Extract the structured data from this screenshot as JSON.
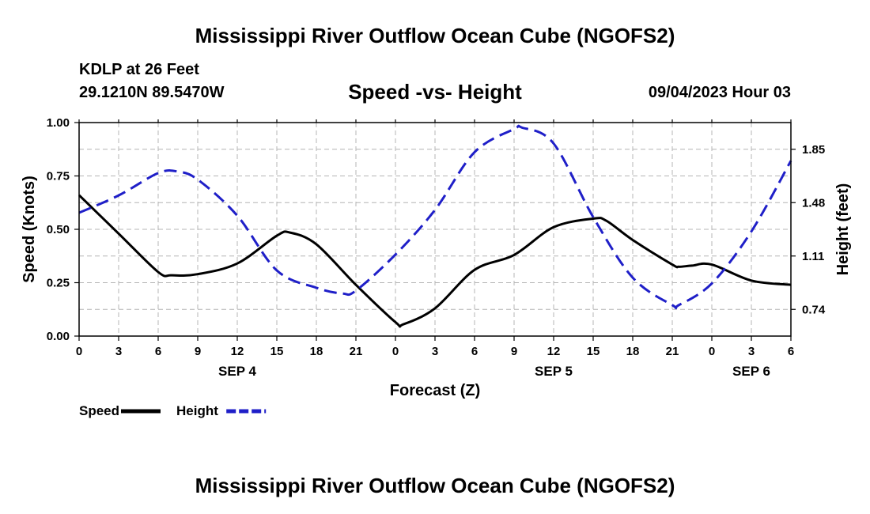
{
  "header": {
    "title": "Mississippi River Outflow Ocean Cube (NGOFS2)",
    "station": "KDLP at 26 Feet",
    "coords": "29.1210N  89.5470W",
    "subtitle": "Speed -vs- Height",
    "datetime": "09/04/2023 Hour 03",
    "footer_title": "Mississippi River Outflow Ocean Cube (NGOFS2)"
  },
  "colors": {
    "speed": "#000000",
    "height": "#1f1fc8",
    "grid": "#b4b4b4"
  },
  "chart_data": {
    "type": "line",
    "title": "Speed -vs- Height",
    "xlabel": "Forecast (Z)",
    "ylabel": "Speed (Knots)",
    "y2label": "Height (feet)",
    "xlim": [
      0,
      54
    ],
    "ylim": [
      0,
      1.0
    ],
    "y2lim": [
      0.555,
      2.035
    ],
    "x_tick_values": [
      0,
      3,
      6,
      9,
      12,
      15,
      18,
      21,
      24,
      27,
      30,
      33,
      36,
      39,
      42,
      45,
      48,
      51,
      54
    ],
    "x_tick_labels": [
      "0",
      "3",
      "6",
      "9",
      "12",
      "15",
      "18",
      "21",
      "0",
      "3",
      "6",
      "9",
      "12",
      "15",
      "18",
      "21",
      "0",
      "3",
      "6"
    ],
    "date_labels": [
      {
        "x": 12,
        "label": "SEP 4"
      },
      {
        "x": 36,
        "label": "SEP 5"
      },
      {
        "x": 51,
        "label": "SEP 6"
      }
    ],
    "y_ticks": [
      {
        "v": 0.0,
        "label": "0.00"
      },
      {
        "v": 0.25,
        "label": "0.25"
      },
      {
        "v": 0.5,
        "label": "0.50"
      },
      {
        "v": 0.75,
        "label": "0.75"
      },
      {
        "v": 1.0,
        "label": "1.00"
      }
    ],
    "y2_ticks": [
      {
        "v": 0.74,
        "label": "0.74"
      },
      {
        "v": 1.11,
        "label": "1.11"
      },
      {
        "v": 1.48,
        "label": "1.48"
      },
      {
        "v": 1.85,
        "label": "1.85"
      }
    ],
    "grid": true,
    "series": [
      {
        "name": "Speed",
        "axis": "left",
        "style": "solid",
        "x": [
          0,
          3,
          6,
          7,
          9,
          12,
          15,
          16,
          18,
          21,
          24,
          24.6,
          27,
          30,
          33,
          36,
          39,
          40,
          42,
          45,
          45.5,
          46.5,
          48,
          51,
          54
        ],
        "y": [
          0.66,
          0.48,
          0.3,
          0.285,
          0.29,
          0.34,
          0.47,
          0.485,
          0.43,
          0.24,
          0.065,
          0.055,
          0.13,
          0.31,
          0.38,
          0.51,
          0.55,
          0.54,
          0.45,
          0.335,
          0.325,
          0.33,
          0.335,
          0.26,
          0.24
        ]
      },
      {
        "name": "Height",
        "axis": "right",
        "style": "dashed",
        "x": [
          0,
          3,
          6,
          7.5,
          9,
          12,
          15,
          18,
          20,
          21,
          24,
          27,
          30,
          33,
          33.6,
          36,
          39,
          42,
          45,
          45.5,
          48,
          51,
          54
        ],
        "y": [
          1.41,
          1.53,
          1.685,
          1.695,
          1.64,
          1.39,
          1.01,
          0.89,
          0.85,
          0.87,
          1.12,
          1.43,
          1.83,
          1.99,
          2.0,
          1.89,
          1.38,
          0.96,
          0.77,
          0.77,
          0.92,
          1.28,
          1.77
        ]
      }
    ],
    "legend": [
      {
        "label": "Speed",
        "series": "Speed"
      },
      {
        "label": "Height",
        "series": "Height"
      }
    ],
    "legend_position": "bottom-left"
  }
}
